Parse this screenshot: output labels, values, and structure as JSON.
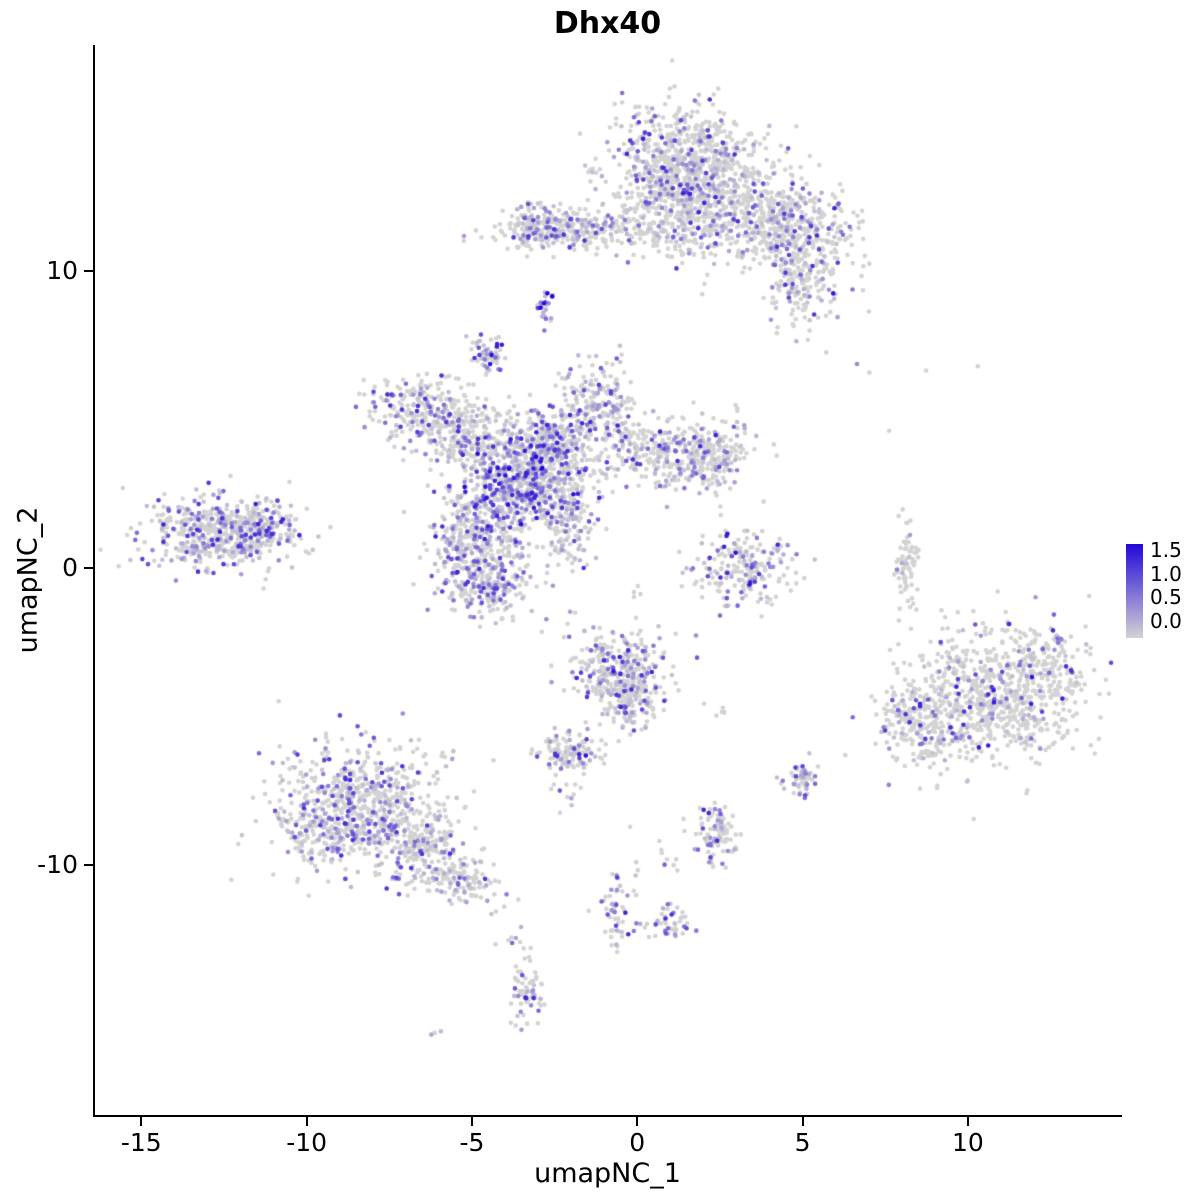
{
  "chart_data": {
    "type": "scatter",
    "title": "Dhx40",
    "xlabel": "umapNC_1",
    "ylabel": "umapNC_2",
    "xlim": [
      -16.4,
      14.6
    ],
    "ylim": [
      -18.4,
      17.6
    ],
    "x_ticks": [
      -15,
      -10,
      -5,
      0,
      5,
      10
    ],
    "y_ticks": [
      10,
      0,
      -10
    ],
    "grid": false,
    "point_radius_px": 2.3,
    "legend": {
      "position": "right",
      "labels": [
        "1.5",
        "1.0",
        "0.5",
        "0.0"
      ],
      "values": [
        1.5,
        1.0,
        0.5,
        0.0
      ],
      "low_color": "#D3D3D3",
      "high_color": "#2307DA",
      "min": 0,
      "max": 1.5
    },
    "cluster_fields": [
      "center_x",
      "center_y",
      "sd_x",
      "sd_y",
      "n_points",
      "frac_expressing",
      "max_expression"
    ],
    "clusters": [
      [
        1.4,
        13.9,
        1.15,
        0.85,
        600,
        0.22,
        1.3
      ],
      [
        2.7,
        12.0,
        1.3,
        0.8,
        450,
        0.22,
        1.3
      ],
      [
        1.0,
        12.7,
        0.8,
        0.8,
        250,
        0.25,
        1.3
      ],
      [
        4.8,
        11.4,
        0.85,
        0.7,
        320,
        0.32,
        1.4
      ],
      [
        4.9,
        9.7,
        0.5,
        0.75,
        180,
        0.3,
        1.4
      ],
      [
        -1.4,
        11.4,
        1.5,
        0.33,
        280,
        0.25,
        1.2
      ],
      [
        -3.0,
        11.5,
        0.45,
        0.4,
        110,
        0.35,
        1.3
      ],
      [
        -2.82,
        8.8,
        0.12,
        0.3,
        26,
        0.8,
        1.65
      ],
      [
        -4.5,
        7.25,
        0.28,
        0.3,
        60,
        0.55,
        1.4
      ],
      [
        -3.4,
        2.9,
        0.85,
        0.85,
        650,
        0.5,
        1.5
      ],
      [
        -2.6,
        4.1,
        0.6,
        0.6,
        250,
        0.4,
        1.3
      ],
      [
        -1.2,
        5.5,
        0.6,
        0.65,
        220,
        0.35,
        1.3
      ],
      [
        -6.5,
        5.4,
        0.85,
        0.5,
        230,
        0.3,
        1.2
      ],
      [
        -5.2,
        4.4,
        0.8,
        0.5,
        230,
        0.3,
        1.2
      ],
      [
        0.9,
        3.9,
        1.2,
        0.6,
        330,
        0.35,
        1.3
      ],
      [
        2.2,
        3.6,
        0.5,
        0.5,
        120,
        0.3,
        1.3
      ],
      [
        -4.9,
        0.8,
        0.7,
        1.0,
        380,
        0.4,
        1.3
      ],
      [
        -4.4,
        -0.6,
        0.5,
        0.5,
        140,
        0.35,
        1.3
      ],
      [
        -2.1,
        1.6,
        0.4,
        0.8,
        150,
        0.35,
        1.2
      ],
      [
        -12.7,
        1.2,
        1.15,
        0.6,
        480,
        0.4,
        1.3
      ],
      [
        -11.4,
        1.3,
        0.5,
        0.45,
        130,
        0.4,
        1.3
      ],
      [
        3.2,
        0.0,
        0.75,
        0.6,
        210,
        0.35,
        1.5
      ],
      [
        8.15,
        0.2,
        0.16,
        0.55,
        70,
        0.12,
        1.0
      ],
      [
        10.7,
        -4.4,
        1.3,
        1.15,
        750,
        0.18,
        1.4
      ],
      [
        8.4,
        -5.3,
        0.55,
        0.75,
        160,
        0.2,
        1.3
      ],
      [
        12.3,
        -3.4,
        0.5,
        0.6,
        120,
        0.15,
        1.2
      ],
      [
        -8.3,
        -8.0,
        1.25,
        1.05,
        700,
        0.35,
        1.25
      ],
      [
        -6.3,
        -9.6,
        0.6,
        0.55,
        180,
        0.3,
        1.2
      ],
      [
        -5.2,
        -10.6,
        0.4,
        0.4,
        90,
        0.3,
        1.2
      ],
      [
        -9.9,
        -9.0,
        0.5,
        0.5,
        100,
        0.3,
        1.2
      ],
      [
        -0.5,
        -3.4,
        0.8,
        0.6,
        260,
        0.35,
        1.35
      ],
      [
        -0.3,
        -4.5,
        0.5,
        0.55,
        140,
        0.3,
        1.3
      ],
      [
        -1.95,
        -6.2,
        0.5,
        0.32,
        120,
        0.3,
        1.5
      ],
      [
        2.4,
        -8.9,
        0.32,
        0.45,
        100,
        0.3,
        1.3
      ],
      [
        5.0,
        -7.05,
        0.22,
        0.28,
        55,
        0.5,
        1.4
      ],
      [
        -0.6,
        -11.3,
        0.28,
        0.85,
        55,
        0.3,
        1.3
      ],
      [
        1.0,
        -12.0,
        0.4,
        0.3,
        45,
        0.35,
        1.3
      ],
      [
        -3.35,
        -14.1,
        0.22,
        0.6,
        65,
        0.35,
        1.3
      ],
      [
        -6.1,
        -15.6,
        0.12,
        0.1,
        3,
        0.4,
        0.9
      ],
      [
        8.3,
        6.7,
        1.3,
        0.12,
        4,
        0.3,
        0.9
      ],
      [
        7.64,
        4.65,
        0.08,
        0.08,
        1,
        0.0,
        0.5
      ],
      [
        2.5,
        -4.8,
        0.25,
        0.18,
        6,
        0.1,
        0.8
      ],
      [
        -2.0,
        -7.5,
        0.3,
        0.45,
        12,
        0.2,
        0.9
      ],
      [
        -3.9,
        -12.2,
        0.3,
        0.6,
        12,
        0.2,
        0.9
      ],
      [
        0.9,
        -9.8,
        0.25,
        0.25,
        8,
        0.2,
        0.9
      ],
      [
        -2.3,
        -2.0,
        0.5,
        0.35,
        6,
        0.1,
        0.8
      ],
      [
        6.9,
        10.3,
        0.25,
        0.8,
        8,
        0.2,
        0.9
      ],
      [
        0.0,
        -0.9,
        0.25,
        0.5,
        6,
        0.15,
        0.9
      ]
    ]
  }
}
